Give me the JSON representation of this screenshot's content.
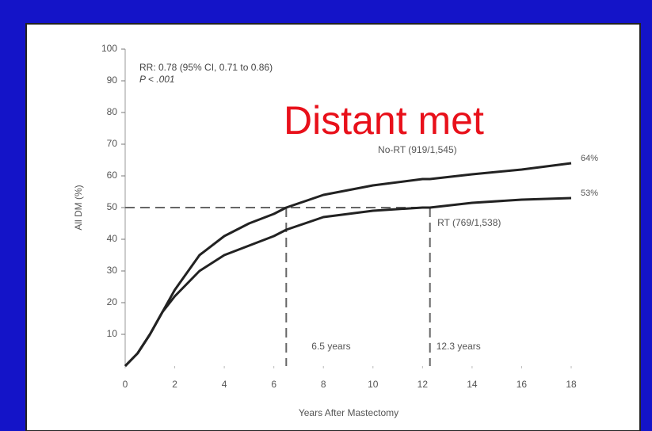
{
  "chart_data": {
    "type": "line",
    "annotation": "Distant met",
    "stats_text": [
      "RR: 0.78 (95% CI, 0.71 to 0.86)",
      "P < .001"
    ],
    "x_label": "Years After Mastectomy",
    "y_label": "All DM (%)",
    "x": [
      0,
      0.5,
      1,
      1.5,
      2,
      3,
      4,
      5,
      6,
      6.5,
      8,
      10,
      12,
      12.3,
      14,
      16,
      18
    ],
    "series": [
      {
        "name": "No-RT (919/1,545)",
        "color": "#222222",
        "values": [
          0,
          4,
          10,
          17,
          24,
          35,
          41,
          45,
          48,
          50,
          54,
          57,
          59,
          59,
          60.5,
          62,
          64
        ],
        "value_labels": [
          null,
          null,
          null,
          null,
          null,
          null,
          null,
          null,
          null,
          null,
          null,
          null,
          null,
          null,
          null,
          null,
          "64%"
        ]
      },
      {
        "name": "RT (769/1,538)",
        "color": "#222222",
        "values": [
          0,
          4,
          10,
          17,
          22,
          30,
          35,
          38,
          41,
          43,
          47,
          49,
          50,
          50,
          51.5,
          52.5,
          53
        ],
        "value_labels": [
          null,
          null,
          null,
          null,
          null,
          null,
          null,
          null,
          null,
          null,
          null,
          null,
          null,
          null,
          null,
          null,
          "53%"
        ]
      }
    ],
    "reference_y": 50,
    "reference_x": [
      6.5,
      12.3
    ],
    "reference_labels": [
      "6.5 years",
      "12.3 years"
    ],
    "xlim": [
      0,
      18
    ],
    "xticks": [
      0,
      2,
      4,
      6,
      8,
      10,
      12,
      14,
      16,
      18
    ],
    "ylim": [
      0,
      100
    ],
    "yticks": [
      10,
      20,
      30,
      40,
      50,
      60,
      70,
      80,
      90,
      100
    ]
  }
}
